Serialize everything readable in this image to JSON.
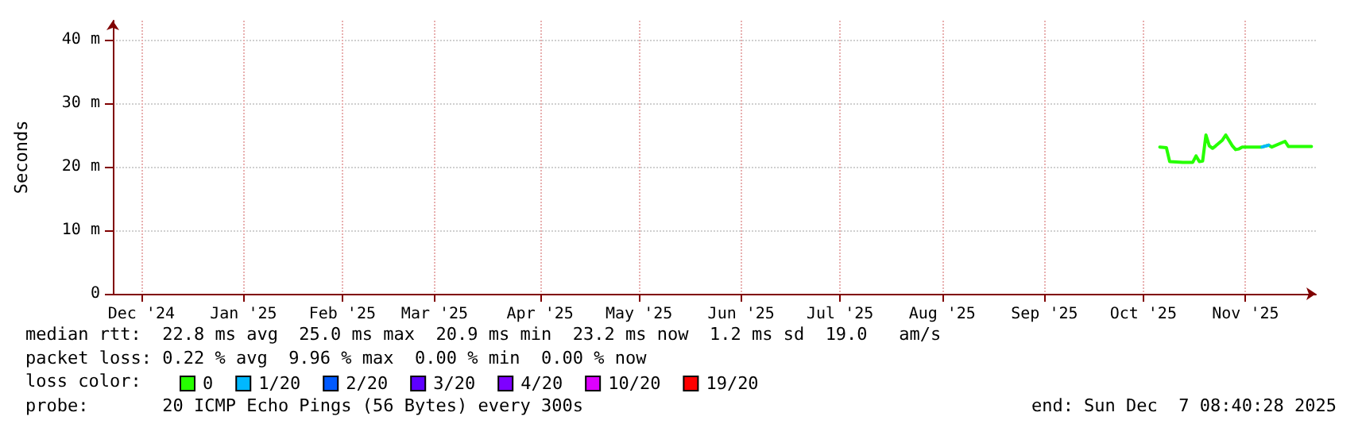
{
  "chart_data": {
    "type": "line",
    "ylabel": "Seconds",
    "x": [
      "2025-10-21",
      "2025-10-23",
      "2025-10-24",
      "2025-10-28",
      "2025-10-31",
      "2025-11-01",
      "2025-11-02",
      "2025-11-03",
      "2025-11-04",
      "2025-11-05",
      "2025-11-06",
      "2025-11-07",
      "2025-11-09",
      "2025-11-10",
      "2025-11-12",
      "2025-11-13",
      "2025-11-14",
      "2025-11-15",
      "2025-11-21",
      "2025-11-23",
      "2025-11-24",
      "2025-11-28",
      "2025-11-29",
      "2025-12-06"
    ],
    "series": [
      {
        "name": "0",
        "color": "#26ff00",
        "values": [
          23.1,
          23.0,
          20.8,
          20.7,
          20.7,
          21.7,
          20.8,
          20.9,
          25.0,
          23.3,
          22.9,
          23.3,
          24.2,
          25.0,
          23.3,
          22.7,
          22.8,
          23.1,
          23.1,
          23.4,
          23.1,
          24.0,
          23.2,
          23.2
        ]
      },
      {
        "name": "1/20",
        "color": "#00b8ff",
        "values": [
          null,
          null,
          null,
          null,
          null,
          null,
          null,
          null,
          null,
          null,
          null,
          null,
          null,
          null,
          null,
          null,
          null,
          null,
          23.1,
          23.4,
          null,
          null,
          null,
          null
        ]
      },
      {
        "name": "2/20",
        "color": "#0059ff",
        "values": [
          null,
          null,
          null,
          null,
          null,
          null,
          null,
          null,
          null,
          null,
          null,
          null,
          null,
          null,
          null,
          null,
          null,
          null,
          null,
          null,
          null,
          null,
          null,
          null
        ]
      },
      {
        "name": "3/20",
        "color": "#5e00ff",
        "values": [
          null,
          null,
          null,
          null,
          null,
          null,
          null,
          null,
          null,
          null,
          null,
          null,
          null,
          null,
          null,
          null,
          null,
          null,
          null,
          null,
          null,
          null,
          null,
          null
        ]
      },
      {
        "name": "4/20",
        "color": "#7e00ff",
        "values": [
          null,
          null,
          null,
          null,
          null,
          null,
          null,
          null,
          null,
          null,
          null,
          null,
          null,
          null,
          null,
          null,
          null,
          null,
          null,
          null,
          null,
          null,
          null,
          null
        ]
      },
      {
        "name": "10/20",
        "color": "#dd00ff",
        "values": [
          null,
          null,
          null,
          null,
          null,
          null,
          null,
          null,
          null,
          null,
          null,
          null,
          null,
          null,
          null,
          null,
          null,
          null,
          null,
          null,
          null,
          null,
          null,
          null
        ]
      },
      {
        "name": "19/20",
        "color": "#ff0000",
        "values": [
          null,
          null,
          null,
          null,
          null,
          null,
          null,
          null,
          null,
          null,
          null,
          null,
          null,
          null,
          null,
          null,
          null,
          null,
          null,
          null,
          null,
          null,
          null,
          null
        ]
      }
    ],
    "xlim": [
      "2024-12-07T08:40",
      "2025-12-07T08:40"
    ],
    "xticks": [
      {
        "value": "2024-12-16",
        "label": "Dec '24"
      },
      {
        "value": "2025-01-16",
        "label": "Jan '25"
      },
      {
        "value": "2025-02-15",
        "label": "Feb '25"
      },
      {
        "value": "2025-03-15",
        "label": "Mar '25"
      },
      {
        "value": "2025-04-16",
        "label": "Apr '25"
      },
      {
        "value": "2025-05-16",
        "label": "May '25"
      },
      {
        "value": "2025-06-16",
        "label": "Jun '25"
      },
      {
        "value": "2025-07-16",
        "label": "Jul '25"
      },
      {
        "value": "2025-08-16",
        "label": "Aug '25"
      },
      {
        "value": "2025-09-16",
        "label": "Sep '25"
      },
      {
        "value": "2025-10-16",
        "label": "Oct '25"
      },
      {
        "value": "2025-11-16",
        "label": "Nov '25"
      }
    ],
    "ylim": [
      0,
      43
    ],
    "yticks": [
      0,
      {
        "value": 10,
        "label": "10 m"
      },
      {
        "value": 20,
        "label": "20 m"
      },
      {
        "value": 30,
        "label": "30 m"
      },
      {
        "value": 40,
        "label": "40 m"
      }
    ],
    "grid": true,
    "legend": "bottom",
    "legend_title": "loss color:",
    "marker": "none",
    "line_style": "solid",
    "annotations": [
      "median rtt:  22.8 ms avg  25.0 ms max  20.9 ms min  23.2 ms now  1.2 ms sd  19.0   am/s",
      "packet loss: 0.22 % avg  9.96 % max  0.00 % min  0.00 % now",
      "probe:       20 ICMP Echo Pings (56 Bytes) every 300s",
      "end: Sun Dec  7 08:40:28 2025"
    ]
  }
}
